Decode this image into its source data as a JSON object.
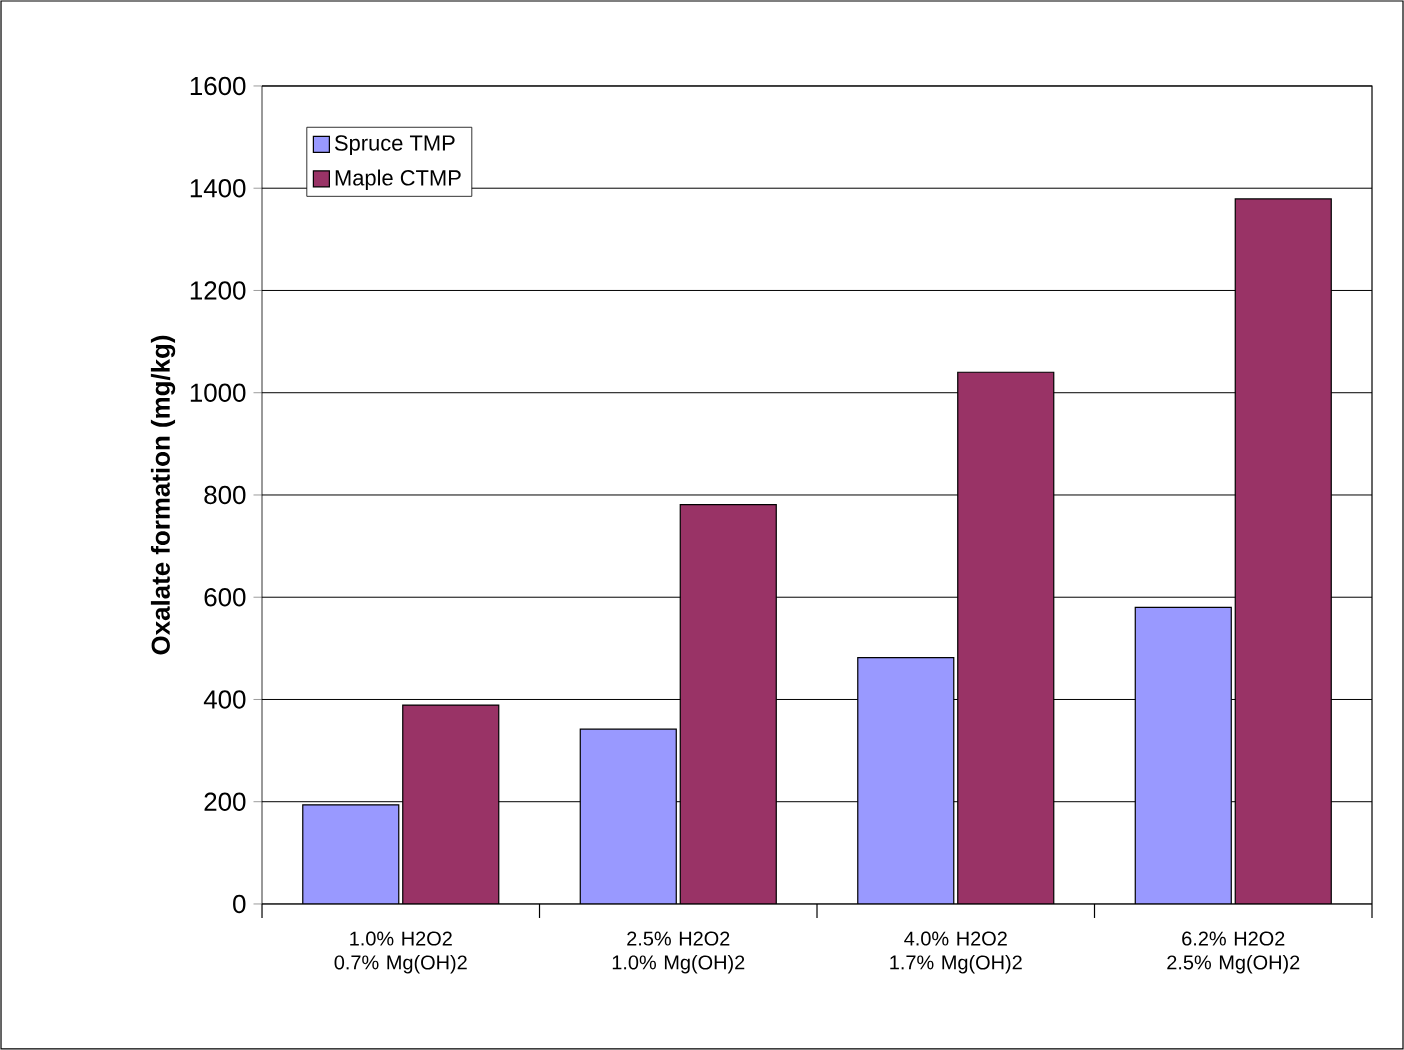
{
  "chart_data": {
    "type": "bar",
    "ylabel": "Oxalate formation (mg/kg)",
    "categories": [
      "1.0% H2O2 0.7% Mg(OH)2",
      "2.5% H2O2 1.0% Mg(OH)2",
      "4.0% H2O2 1.7% Mg(OH)2",
      "6.2% H2O2 2.5% Mg(OH)2"
    ],
    "series": [
      {
        "name": "Spruce TMP",
        "color": "#9999ff",
        "values": [
          194,
          342,
          482,
          580
        ]
      },
      {
        "name": "Maple CTMP",
        "color": "#993366",
        "values": [
          389,
          781,
          1040,
          1379
        ]
      }
    ],
    "ylim": [
      0,
      1600
    ],
    "yticks": [
      0,
      200,
      400,
      600,
      800,
      1000,
      1200,
      1400,
      1600
    ],
    "grid": "y",
    "legend": "top left"
  }
}
